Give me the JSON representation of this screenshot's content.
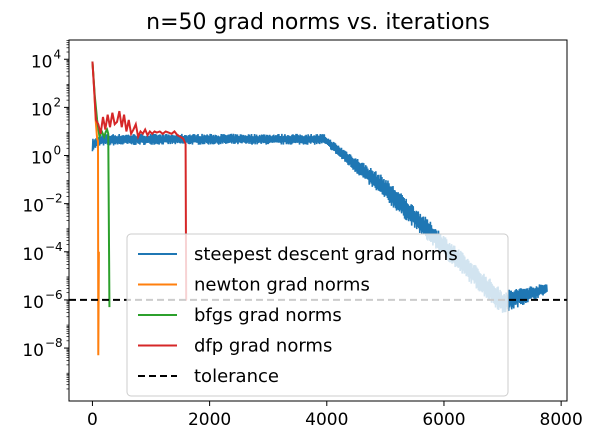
{
  "chart_data": {
    "type": "line",
    "title": "n=50 grad norms vs. iterations",
    "xlabel": "",
    "ylabel": "",
    "yscale": "log",
    "xlim": [
      -400,
      8100
    ],
    "ylim_log10": [
      -10.2,
      4.8
    ],
    "x_ticks": [
      0,
      2000,
      4000,
      6000,
      8000
    ],
    "x_tick_labels": [
      "0",
      "2000",
      "4000",
      "6000",
      "8000"
    ],
    "y_ticks_log10": [
      -8,
      -6,
      -4,
      -2,
      0,
      2,
      4
    ],
    "y_tick_bases": [
      "10",
      "10",
      "10",
      "10",
      "10",
      "10",
      "10"
    ],
    "y_tick_exponents": [
      "−8",
      "−6",
      "−4",
      "−2",
      "0",
      "2",
      "4"
    ],
    "grid": false,
    "legend_position": "lower-center",
    "series": [
      {
        "name": "steepest descent grad norms",
        "color": "#1f77b4",
        "style": "band",
        "x": [
          0,
          60,
          150,
          1000,
          2000,
          3000,
          3950,
          4000,
          5000,
          6000,
          7000,
          7760
        ],
        "y_low": [
          1.5,
          2.0,
          2.5,
          2.8,
          2.8,
          2.8,
          2.8,
          2.5,
          0.014,
          6e-05,
          2.5e-07,
          1.8e-06
        ],
        "y_high": [
          5,
          5.5,
          8,
          8,
          8,
          8,
          8,
          6,
          0.12,
          0.0005,
          2.5e-06,
          5e-06
        ]
      },
      {
        "name": "newton grad norms",
        "color": "#ff7f0e",
        "style": "line",
        "x": [
          0,
          30,
          55,
          80,
          95,
          100,
          110
        ],
        "y": [
          8000,
          600,
          30,
          5,
          4,
          5e-09,
          0.0001
        ]
      },
      {
        "name": "bfgs grad norms",
        "color": "#2ca02c",
        "style": "line",
        "x": [
          0,
          40,
          80,
          120,
          160,
          200,
          230,
          250,
          270,
          290
        ],
        "y": [
          8000,
          300,
          30,
          6,
          10,
          6,
          10,
          12,
          8,
          5e-07
        ]
      },
      {
        "name": "dfp grad norms",
        "color": "#d62728",
        "style": "line",
        "x": [
          0,
          30,
          60,
          100,
          140,
          180,
          220,
          260,
          300,
          340,
          380,
          420,
          460,
          500,
          540,
          580,
          620,
          660,
          700,
          740,
          780,
          820,
          860,
          900,
          940,
          980,
          1020,
          1060,
          1100,
          1150,
          1200,
          1250,
          1300,
          1350,
          1400,
          1450,
          1500,
          1550,
          1590,
          1600,
          1610
        ],
        "y": [
          8000,
          500,
          30,
          20,
          8,
          40,
          12,
          50,
          15,
          60,
          20,
          25,
          70,
          15,
          50,
          10,
          30,
          8,
          12,
          20,
          6,
          10,
          8,
          12,
          7,
          10,
          8,
          10,
          9,
          10,
          8,
          10,
          9,
          8,
          10,
          7,
          6,
          5,
          3,
          1e-06,
          1e-06
        ]
      },
      {
        "name": "tolerance",
        "color": "#000000",
        "style": "dashed",
        "y_value": 1e-06
      }
    ]
  }
}
